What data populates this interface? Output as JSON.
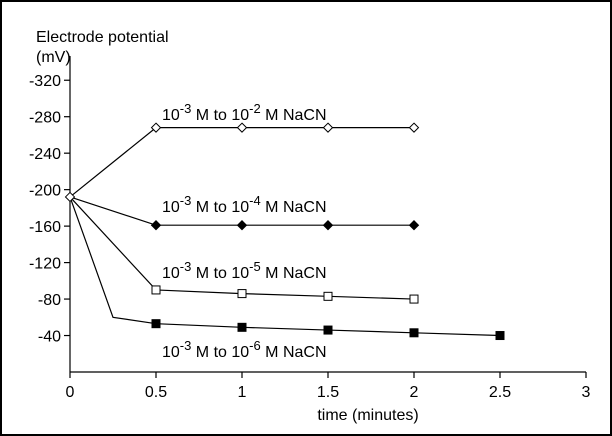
{
  "chart_data": {
    "type": "line",
    "ylabel_line1": "Electrode potential",
    "ylabel_line2": "(mV)",
    "xlabel": "time (minutes)",
    "xlim": [
      0,
      3
    ],
    "ylim": [
      0,
      -340
    ],
    "x_ticks": [
      0,
      0.5,
      1,
      1.5,
      2,
      2.5,
      3
    ],
    "x_tick_labels": [
      "0",
      "0.5",
      "1",
      "1.5",
      "2",
      "2.5",
      "3"
    ],
    "y_ticks": [
      -40,
      -80,
      -120,
      -160,
      -200,
      -240,
      -280,
      -320
    ],
    "y_tick_labels": [
      "-40",
      "-80",
      "-120",
      "-160",
      "-200",
      "-240",
      "-280",
      "-320"
    ],
    "grid": false,
    "series": [
      {
        "name_parts": [
          "10",
          "-3",
          " M to 10",
          "-2",
          " M NaCN"
        ],
        "marker": "diamond-open",
        "x": [
          0,
          0.5,
          1,
          1.5,
          2
        ],
        "y": [
          -192,
          -268,
          -268,
          -268,
          -268
        ]
      },
      {
        "name_parts": [
          "10",
          "-3",
          " M to 10",
          "-4",
          " M NaCN"
        ],
        "marker": "diamond-filled",
        "x": [
          0,
          0.5,
          1,
          1.5,
          2
        ],
        "y": [
          -192,
          -161,
          -161,
          -161,
          -161
        ]
      },
      {
        "name_parts": [
          "10",
          "-3",
          " M to 10",
          "-5",
          " M NaCN"
        ],
        "marker": "square-open",
        "x": [
          0,
          0.5,
          1,
          1.5,
          2
        ],
        "y": [
          -192,
          -90,
          -86,
          -83,
          -80
        ]
      },
      {
        "name_parts": [
          "10",
          "-3",
          " M to 10",
          "-6",
          " M NaCN"
        ],
        "marker": "square-filled",
        "x": [
          0,
          0.25,
          0.5,
          1,
          1.5,
          2,
          2.5
        ],
        "y": [
          -192,
          -60,
          -53,
          -49,
          -46,
          -43,
          -40
        ],
        "marker_indices": [
          1,
          2,
          3,
          4,
          5,
          6
        ],
        "hidden_marker_indices": [
          1
        ]
      }
    ]
  }
}
